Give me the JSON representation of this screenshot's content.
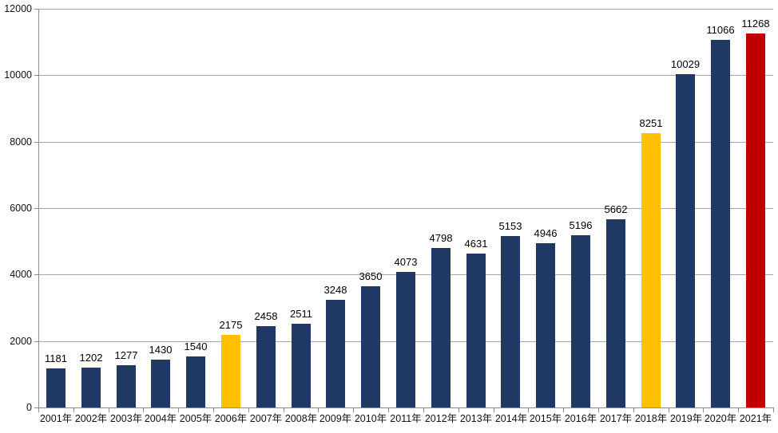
{
  "chart_data": {
    "type": "bar",
    "title": "",
    "xlabel": "",
    "ylabel": "",
    "categories": [
      "2001年",
      "2002年",
      "2003年",
      "2004年",
      "2005年",
      "2006年",
      "2007年",
      "2008年",
      "2009年",
      "2010年",
      "2011年",
      "2012年",
      "2013年",
      "2014年",
      "2015年",
      "2016年",
      "2017年",
      "2018年",
      "2019年",
      "2020年",
      "2021年"
    ],
    "values": [
      1181,
      1202,
      1277,
      1430,
      1540,
      2175,
      2458,
      2511,
      3248,
      3650,
      4073,
      4798,
      4631,
      5153,
      4946,
      5196,
      5662,
      8251,
      10029,
      11066,
      11268
    ],
    "data_labels": [
      "1181",
      "1202",
      "1277",
      "1430",
      "1540",
      "2175",
      "2458",
      "2511",
      "3248",
      "3650",
      "4073",
      "4798",
      "4631",
      "5153",
      "4946",
      "5196",
      "5662",
      "8251",
      "10029",
      "11066",
      "11268"
    ],
    "bar_colors": [
      "#1f3864",
      "#1f3864",
      "#1f3864",
      "#1f3864",
      "#1f3864",
      "#ffc000",
      "#1f3864",
      "#1f3864",
      "#1f3864",
      "#1f3864",
      "#1f3864",
      "#1f3864",
      "#1f3864",
      "#1f3864",
      "#1f3864",
      "#1f3864",
      "#1f3864",
      "#ffc000",
      "#1f3864",
      "#1f3864",
      "#c00000"
    ],
    "ylim": [
      0,
      12000
    ],
    "yticks": [
      0,
      2000,
      4000,
      6000,
      8000,
      10000,
      12000
    ],
    "ytick_labels": [
      "0",
      "2000",
      "4000",
      "6000",
      "8000",
      "10000",
      "12000"
    ],
    "grid": true,
    "legend": false,
    "colors": {
      "bar_default": "#1f3864",
      "bar_highlight": "#ffc000",
      "bar_latest": "#c00000",
      "gridline": "#a6a6a6",
      "axis": "#8c8c8c",
      "text": "#000000",
      "background": "#ffffff"
    }
  }
}
